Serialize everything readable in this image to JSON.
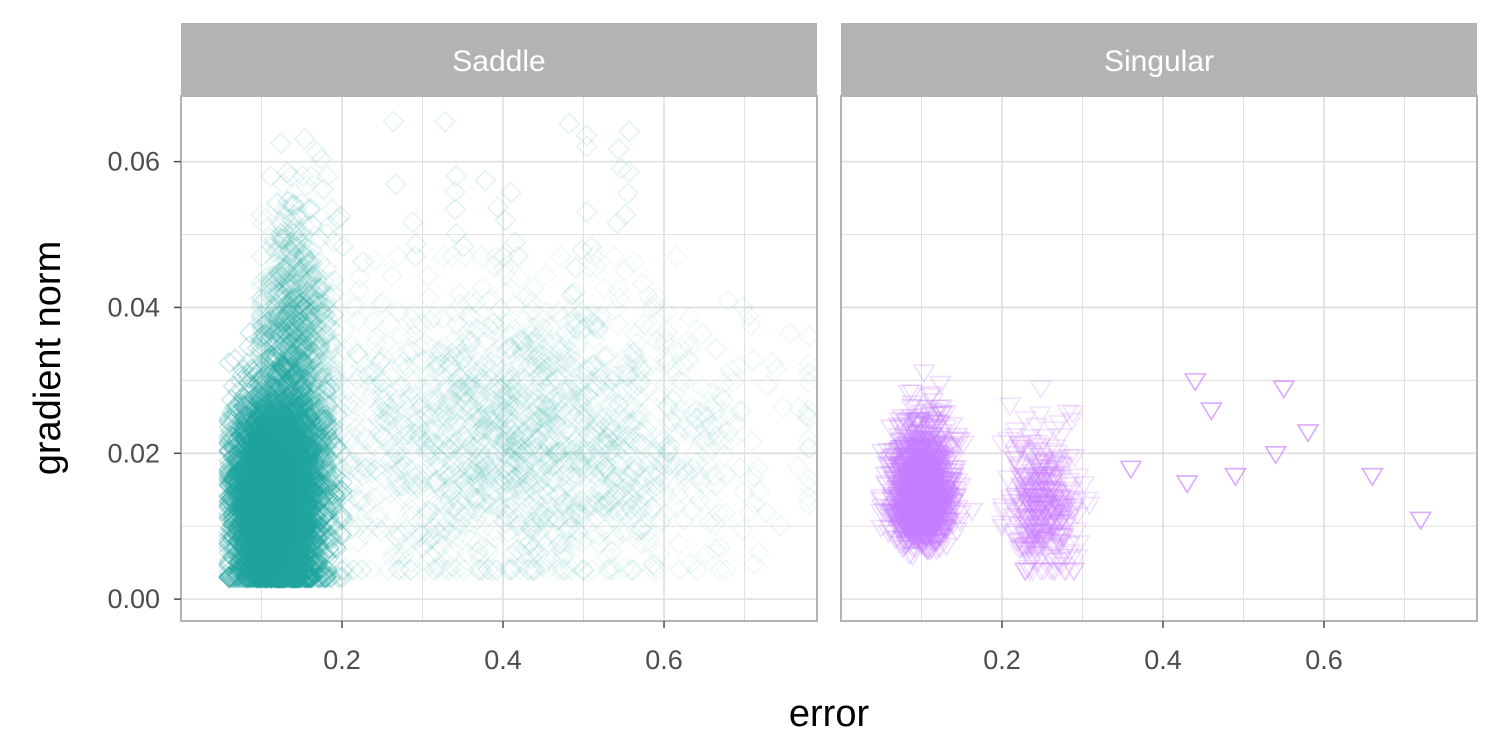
{
  "chart_data": {
    "type": "scatter",
    "xlabel": "error",
    "ylabel": "gradient norm",
    "xlim": [
      0.0,
      0.79
    ],
    "ylim": [
      -0.003,
      0.069
    ],
    "x_ticks": [
      0.2,
      0.4,
      0.6
    ],
    "x_tick_labels": [
      "0.2",
      "0.4",
      "0.6"
    ],
    "y_ticks": [
      0.0,
      0.02,
      0.04,
      0.06
    ],
    "y_tick_labels": [
      "0.00",
      "0.02",
      "0.04",
      "0.06"
    ],
    "grid": true,
    "legend": "none",
    "panels": [
      {
        "label": "Saddle",
        "color": "#20a39e",
        "marker": "diamond-open",
        "clusters": [
          {
            "x_range": [
              0.06,
              0.2
            ],
            "y_range": [
              0.003,
              0.038
            ],
            "x_center": 0.12,
            "y_center": 0.014
          },
          {
            "x_range": [
              0.1,
              0.19
            ],
            "y_range": [
              0.02,
              0.058
            ],
            "x_center": 0.14,
            "y_center": 0.035
          },
          {
            "x_range": [
              0.18,
              0.78
            ],
            "y_range": [
              0.004,
              0.047
            ],
            "x_center": 0.42,
            "y_center": 0.022
          }
        ],
        "max_y": 0.066
      },
      {
        "label": "Singular",
        "color": "#c77cff",
        "marker": "triangle-down-open",
        "clusters": [
          {
            "x_range": [
              0.05,
              0.17
            ],
            "y_range": [
              0.002,
              0.037
            ],
            "x_center": 0.1,
            "y_center": 0.012
          },
          {
            "x_range": [
              0.2,
              0.32
            ],
            "y_range": [
              0.004,
              0.029
            ],
            "x_center": 0.25,
            "y_center": 0.013
          }
        ],
        "outliers": [
          {
            "x": 0.36,
            "y": 0.018
          },
          {
            "x": 0.43,
            "y": 0.016
          },
          {
            "x": 0.44,
            "y": 0.03
          },
          {
            "x": 0.46,
            "y": 0.026
          },
          {
            "x": 0.49,
            "y": 0.017
          },
          {
            "x": 0.54,
            "y": 0.02
          },
          {
            "x": 0.55,
            "y": 0.029
          },
          {
            "x": 0.58,
            "y": 0.023
          },
          {
            "x": 0.66,
            "y": 0.017
          },
          {
            "x": 0.72,
            "y": 0.011
          }
        ]
      }
    ]
  }
}
